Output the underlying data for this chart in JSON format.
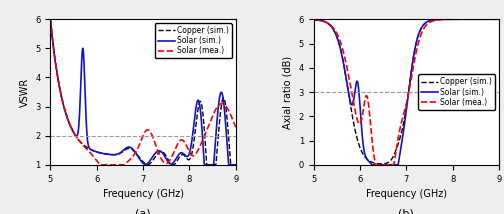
{
  "fig_width": 5.04,
  "fig_height": 2.14,
  "dpi": 100,
  "background_color": "#eeeeee",
  "vswr": {
    "xlim": [
      5,
      9
    ],
    "ylim": [
      1,
      6
    ],
    "xlabel": "Frequency (GHz)",
    "ylabel": "VSWR",
    "hline": 2.0,
    "hline_color": "#999999",
    "label_a": "(a)",
    "legend_labels": [
      "Copper (sim.)",
      "Solar (sim.)",
      "Solar (mea.)"
    ],
    "yticks": [
      1,
      2,
      3,
      4,
      5,
      6
    ],
    "xticks": [
      5,
      6,
      7,
      8,
      9
    ]
  },
  "axrat": {
    "xlim": [
      5,
      9
    ],
    "ylim": [
      0,
      6
    ],
    "xlabel": "Frequency (GHz)",
    "ylabel": "Axial ratio (dB)",
    "hline": 3.0,
    "hline_color": "#999999",
    "label_b": "(b)",
    "legend_labels": [
      "Copper (sim.)",
      "Solar (sim.)",
      "Solar (mea.)"
    ],
    "yticks": [
      0,
      1,
      2,
      3,
      4,
      5,
      6
    ],
    "xticks": [
      5,
      6,
      7,
      8,
      9
    ]
  }
}
